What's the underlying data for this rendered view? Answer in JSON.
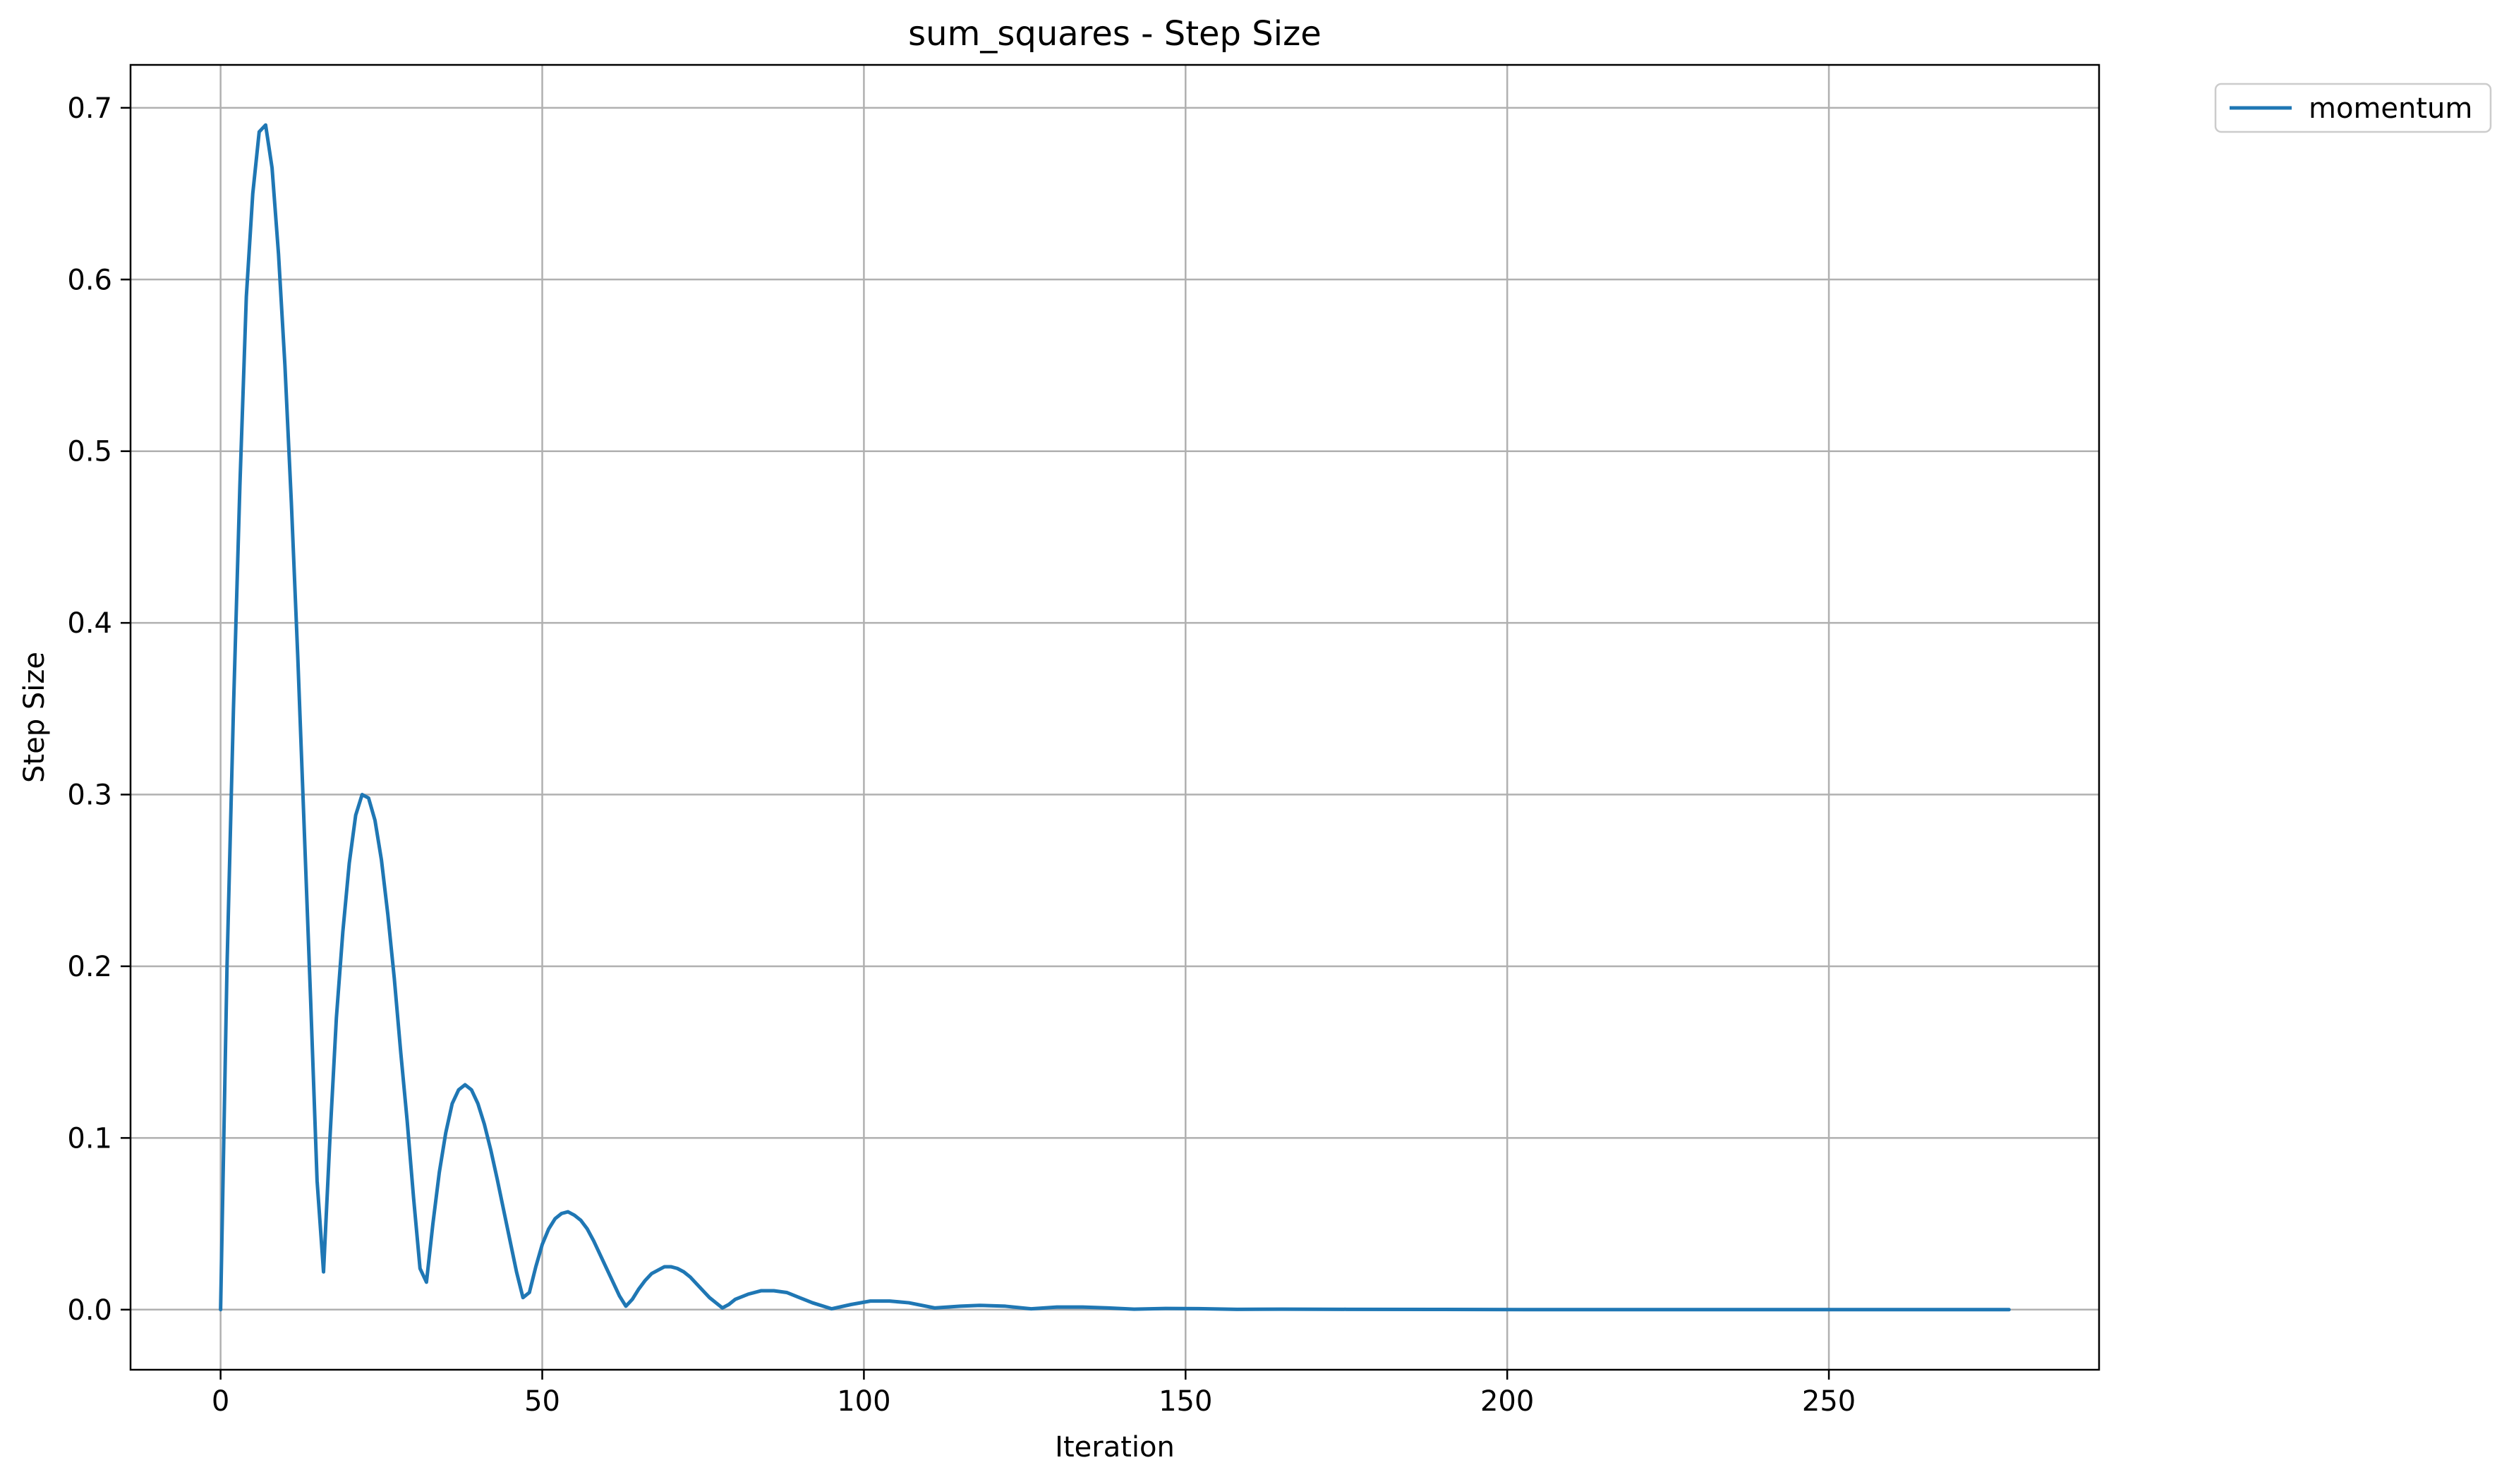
{
  "chart_data": {
    "type": "line",
    "title": "sum_squares - Step Size",
    "xlabel": "Iteration",
    "ylabel": "Step Size",
    "xlim": [
      -14,
      292
    ],
    "ylim": [
      -0.035,
      0.725
    ],
    "xticks": [
      0,
      50,
      100,
      150,
      200,
      250
    ],
    "xtick_labels": [
      "0",
      "50",
      "100",
      "150",
      "200",
      "250"
    ],
    "yticks": [
      0.0,
      0.1,
      0.2,
      0.3,
      0.4,
      0.5,
      0.6,
      0.7
    ],
    "ytick_labels": [
      "0.0",
      "0.1",
      "0.2",
      "0.3",
      "0.4",
      "0.5",
      "0.6",
      "0.7"
    ],
    "grid": true,
    "legend": {
      "position": "outside-top-right"
    },
    "series": [
      {
        "name": "momentum",
        "color": "#1f77b4",
        "x": [
          0,
          1,
          2,
          3,
          4,
          5,
          6,
          7,
          8,
          9,
          10,
          11,
          12,
          13,
          14,
          15,
          16,
          17,
          18,
          19,
          20,
          21,
          22,
          23,
          24,
          25,
          26,
          27,
          28,
          29,
          30,
          31,
          32,
          33,
          34,
          35,
          36,
          37,
          38,
          39,
          40,
          41,
          42,
          43,
          44,
          45,
          46,
          47,
          48,
          49,
          50,
          51,
          52,
          53,
          54,
          55,
          56,
          57,
          58,
          59,
          60,
          61,
          62,
          63,
          64,
          65,
          66,
          67,
          68,
          69,
          70,
          71,
          72,
          73,
          74,
          75,
          76,
          77,
          78,
          79,
          80,
          82,
          84,
          86,
          88,
          90,
          92,
          95,
          98,
          101,
          104,
          107,
          111,
          115,
          118,
          122,
          126,
          130,
          134,
          138,
          142,
          147,
          152,
          158,
          165,
          175,
          190,
          210,
          230,
          250,
          265,
          278
        ],
        "y": [
          0.0,
          0.2,
          0.35,
          0.48,
          0.59,
          0.65,
          0.686,
          0.69,
          0.665,
          0.615,
          0.55,
          0.47,
          0.38,
          0.28,
          0.18,
          0.075,
          0.022,
          0.1,
          0.17,
          0.22,
          0.26,
          0.288,
          0.3,
          0.298,
          0.285,
          0.262,
          0.23,
          0.193,
          0.15,
          0.11,
          0.065,
          0.024,
          0.016,
          0.05,
          0.08,
          0.103,
          0.12,
          0.128,
          0.131,
          0.128,
          0.12,
          0.108,
          0.093,
          0.076,
          0.058,
          0.04,
          0.022,
          0.007,
          0.01,
          0.025,
          0.038,
          0.047,
          0.053,
          0.056,
          0.057,
          0.055,
          0.052,
          0.047,
          0.04,
          0.032,
          0.024,
          0.016,
          0.008,
          0.002,
          0.006,
          0.012,
          0.017,
          0.021,
          0.023,
          0.025,
          0.025,
          0.024,
          0.022,
          0.019,
          0.015,
          0.011,
          0.007,
          0.004,
          0.001,
          0.003,
          0.006,
          0.009,
          0.011,
          0.011,
          0.01,
          0.007,
          0.004,
          0.0005,
          0.003,
          0.005,
          0.005,
          0.004,
          0.001,
          0.002,
          0.0025,
          0.002,
          0.0005,
          0.0015,
          0.0015,
          0.001,
          0.0003,
          0.0007,
          0.0006,
          0.0002,
          0.0003,
          0.0002,
          0.0001,
          0.0,
          0.0,
          0.0,
          0.0,
          0.0
        ]
      }
    ]
  }
}
